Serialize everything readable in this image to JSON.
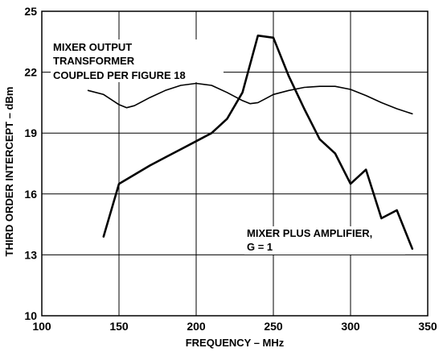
{
  "chart_data": {
    "type": "line",
    "xlabel": "FREQUENCY – MHz",
    "ylabel": "THIRD ORDER INTERCEPT – dBm",
    "xlim": [
      100,
      350
    ],
    "ylim": [
      10,
      25
    ],
    "x_ticks": [
      100,
      150,
      200,
      250,
      300,
      350
    ],
    "y_ticks": [
      10,
      13,
      16,
      19,
      22,
      25
    ],
    "grid": true,
    "series": [
      {
        "name": "MIXER OUTPUT TRANSFORMER COUPLED PER FIGURE 18",
        "x": [
          130,
          140,
          150,
          155,
          160,
          170,
          180,
          190,
          200,
          210,
          220,
          230,
          235,
          240,
          245,
          250,
          260,
          270,
          280,
          290,
          300,
          310,
          320,
          330,
          340
        ],
        "y": [
          21.1,
          20.9,
          20.4,
          20.25,
          20.35,
          20.75,
          21.1,
          21.35,
          21.45,
          21.35,
          21.0,
          20.6,
          20.45,
          20.5,
          20.7,
          20.9,
          21.1,
          21.25,
          21.3,
          21.3,
          21.15,
          20.85,
          20.5,
          20.2,
          19.95
        ]
      },
      {
        "name": "MIXER PLUS AMPLIFIER, G = 1",
        "x": [
          140,
          150,
          160,
          170,
          180,
          190,
          200,
          210,
          220,
          230,
          240,
          250,
          260,
          270,
          280,
          290,
          300,
          310,
          320,
          330,
          340
        ],
        "y": [
          13.9,
          16.5,
          16.95,
          17.4,
          17.8,
          18.2,
          18.6,
          19.0,
          19.7,
          21.0,
          23.8,
          23.7,
          21.8,
          20.2,
          18.7,
          18.0,
          16.5,
          17.2,
          14.8,
          15.2,
          13.3
        ]
      }
    ],
    "annotations": {
      "line1_label": [
        "MIXER OUTPUT",
        "TRANSFORMER",
        "COUPLED PER FIGURE 18"
      ],
      "line2_label": [
        "MIXER PLUS AMPLIFIER,",
        "G = 1"
      ]
    }
  }
}
